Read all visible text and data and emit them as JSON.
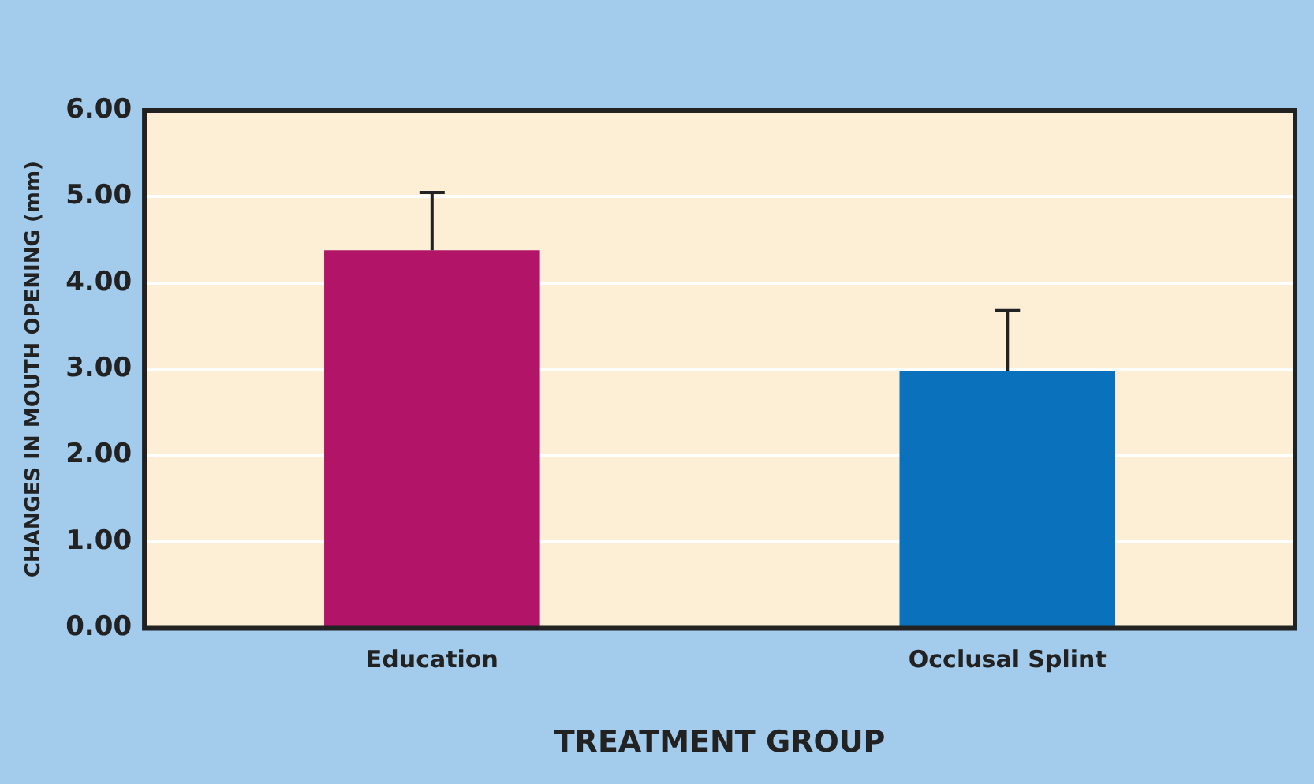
{
  "chart_data": {
    "type": "bar",
    "xlabel": "TREATMENT GROUP",
    "ylabel": "CHANGES IN MOUTH OPENING (mm)",
    "categories": [
      "Education",
      "Occlusal Splint"
    ],
    "values": [
      4.38,
      2.98
    ],
    "colors": [
      "#b21468",
      "#0a72bc"
    ],
    "errors": [
      [
        4.38,
        5.05
      ],
      [
        2.98,
        3.68
      ]
    ],
    "ylim": [
      0,
      6
    ],
    "yticks": [
      {
        "value": 0,
        "label": "0.00"
      },
      {
        "value": 1,
        "label": "1.00"
      },
      {
        "value": 2,
        "label": "2.00"
      },
      {
        "value": 3,
        "label": "3.00"
      },
      {
        "value": 4,
        "label": "4.00"
      },
      {
        "value": 5,
        "label": "5.00"
      },
      {
        "value": 6,
        "label": "6.00"
      }
    ],
    "grid": "y",
    "legend": false
  }
}
